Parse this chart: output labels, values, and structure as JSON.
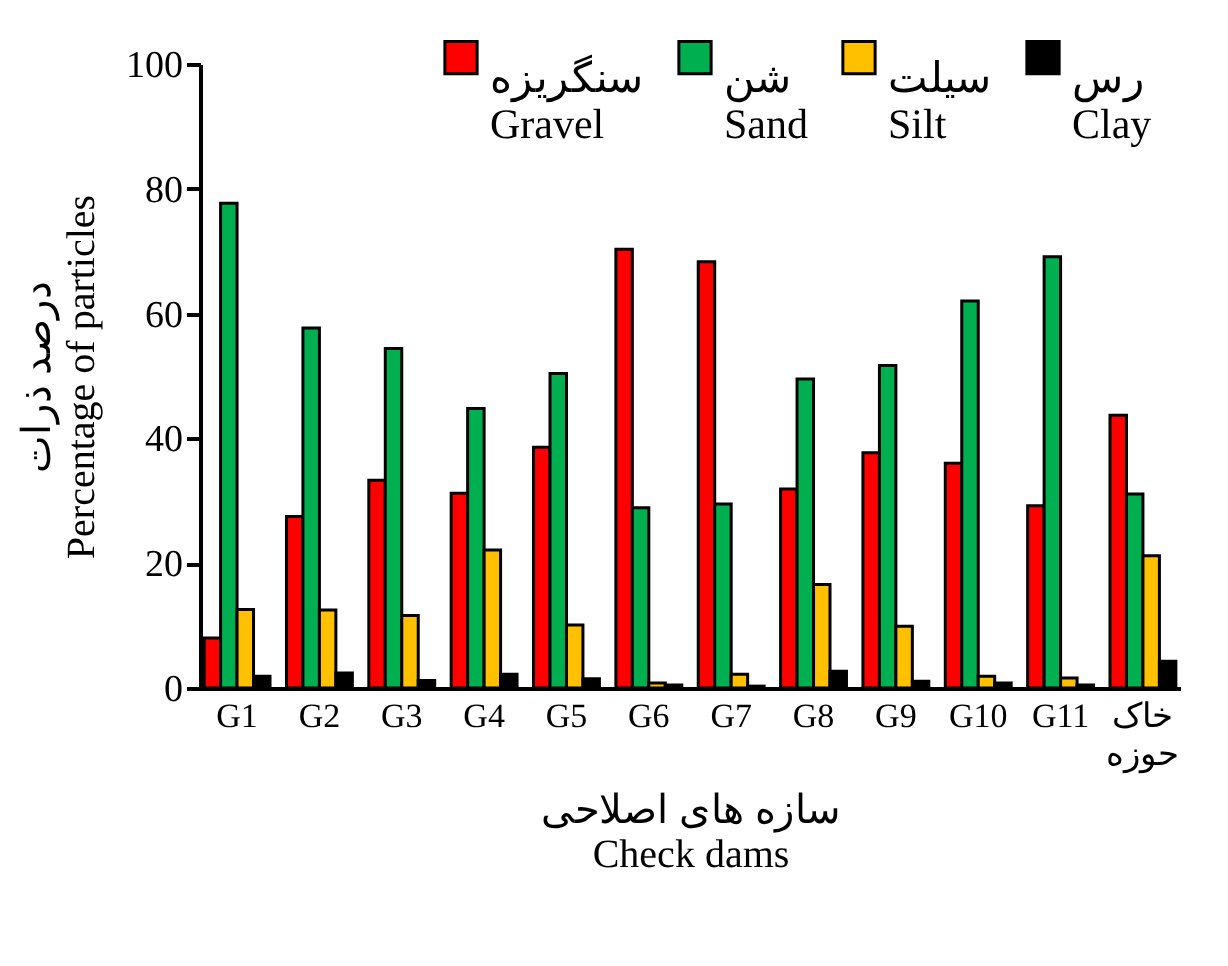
{
  "chart_data": {
    "type": "bar",
    "xlabel": "سازه های اصلاحی\nCheck dams",
    "ylabel": "درصد ذرات\nPercentage of particles",
    "categories": [
      "G1",
      "G2",
      "G3",
      "G4",
      "G5",
      "G6",
      "G7",
      "G8",
      "G9",
      "G10",
      "G11",
      "خاک حوزه"
    ],
    "series": [
      {
        "name": "سنگریزه\nGravel",
        "color": "#ff0000",
        "values": [
          8.0,
          27.5,
          33.3,
          31.2,
          38.6,
          70.3,
          68.3,
          31.9,
          37.7,
          36.0,
          29.2,
          43.7
        ]
      },
      {
        "name": "شن\nSand",
        "color": "#00b050",
        "values": [
          77.7,
          57.7,
          54.4,
          44.8,
          50.4,
          28.9,
          29.5,
          49.5,
          51.7,
          62.0,
          69.1,
          31.1
        ]
      },
      {
        "name": "سیلت\nSilt",
        "color": "#ffc000",
        "values": [
          12.6,
          12.5,
          11.6,
          22.1,
          10.1,
          0.8,
          2.2,
          16.6,
          9.9,
          1.9,
          1.6,
          21.2
        ]
      },
      {
        "name": "رس\nClay",
        "color": "#000000",
        "values": [
          1.9,
          2.4,
          1.2,
          2.2,
          1.5,
          0.5,
          0.3,
          2.7,
          1.1,
          0.8,
          0.5,
          4.3
        ]
      }
    ],
    "ylim": [
      0,
      100
    ],
    "yticks": [
      0,
      20,
      40,
      60,
      80,
      100
    ],
    "grid": false,
    "legend": "top"
  }
}
